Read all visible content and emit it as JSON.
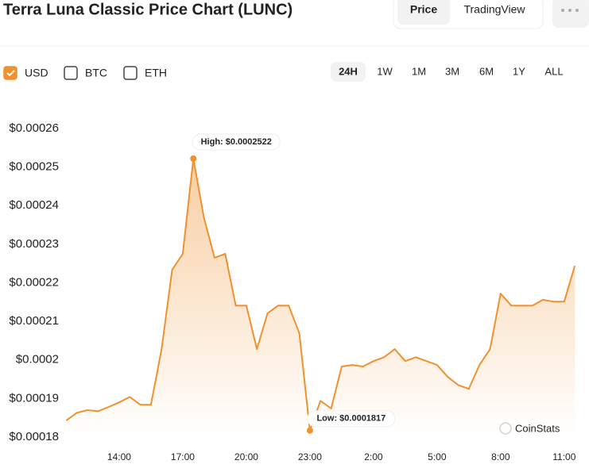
{
  "header": {
    "title": "Terra Luna Classic Price Chart (LUNC)",
    "tabs": [
      "Price",
      "TradingView"
    ],
    "active_tab": 0
  },
  "controls": {
    "currencies": [
      "USD",
      "BTC",
      "ETH"
    ],
    "checked": [
      true,
      false,
      false
    ],
    "ranges": [
      "24H",
      "1W",
      "1M",
      "3M",
      "6M",
      "1Y",
      "ALL"
    ],
    "active_range": 0
  },
  "watermark": "CoinStats",
  "chart_data": {
    "type": "line",
    "categories": [
      null,
      null,
      null,
      null,
      null,
      "14:00",
      null,
      null,
      null,
      null,
      null,
      "17:00",
      null,
      null,
      null,
      null,
      null,
      "20:00",
      null,
      null,
      null,
      null,
      null,
      "23:00",
      null,
      null,
      null,
      null,
      null,
      "2:00",
      null,
      null,
      null,
      null,
      null,
      "5:00",
      null,
      null,
      null,
      null,
      null,
      "8:00",
      null,
      null,
      null,
      null,
      null,
      "11:00",
      null
    ],
    "series": [
      {
        "name": "USD",
        "color": "#f0912f",
        "values": [
          0.0001843,
          0.0001863,
          0.000187,
          0.0001867,
          0.0001878,
          0.000189,
          0.0001904,
          0.0001884,
          0.0001884,
          0.0002028,
          0.0002234,
          0.0002275,
          0.0002522,
          0.0002368,
          0.0002265,
          0.0002275,
          0.0002141,
          0.0002141,
          0.0002028,
          0.0002121,
          0.0002141,
          0.0002141,
          0.0002069,
          0.0001817,
          0.0001894,
          0.0001874,
          0.0001983,
          0.0001987,
          0.0001983,
          0.0001997,
          0.0002007,
          0.0002028,
          0.0001997,
          0.0002007,
          0.0001997,
          0.0001987,
          0.0001956,
          0.0001935,
          0.0001925,
          0.0001987,
          0.0002028,
          0.0002172,
          0.0002141,
          0.0002141,
          0.0002141,
          0.0002156,
          0.0002151,
          0.0002151,
          0.0002244
        ]
      }
    ],
    "ylim": [
      0.00018,
      0.00026
    ],
    "yticks": [
      {
        "value": 0.00018,
        "label": "$0.00018"
      },
      {
        "value": 0.00019,
        "label": "$0.00019"
      },
      {
        "value": 0.0002,
        "label": "$0.0002"
      },
      {
        "value": 0.00021,
        "label": "$0.00021"
      },
      {
        "value": 0.00022,
        "label": "$0.00022"
      },
      {
        "value": 0.00023,
        "label": "$0.00023"
      },
      {
        "value": 0.00024,
        "label": "$0.00024"
      },
      {
        "value": 0.00025,
        "label": "$0.00025"
      },
      {
        "value": 0.00026,
        "label": "$0.00026"
      }
    ],
    "grid": false,
    "annotations": [
      {
        "label": "High: $0.0002522",
        "value": 0.0002522
      },
      {
        "label": "Low: $0.0001817",
        "value": 0.0001817
      }
    ]
  }
}
